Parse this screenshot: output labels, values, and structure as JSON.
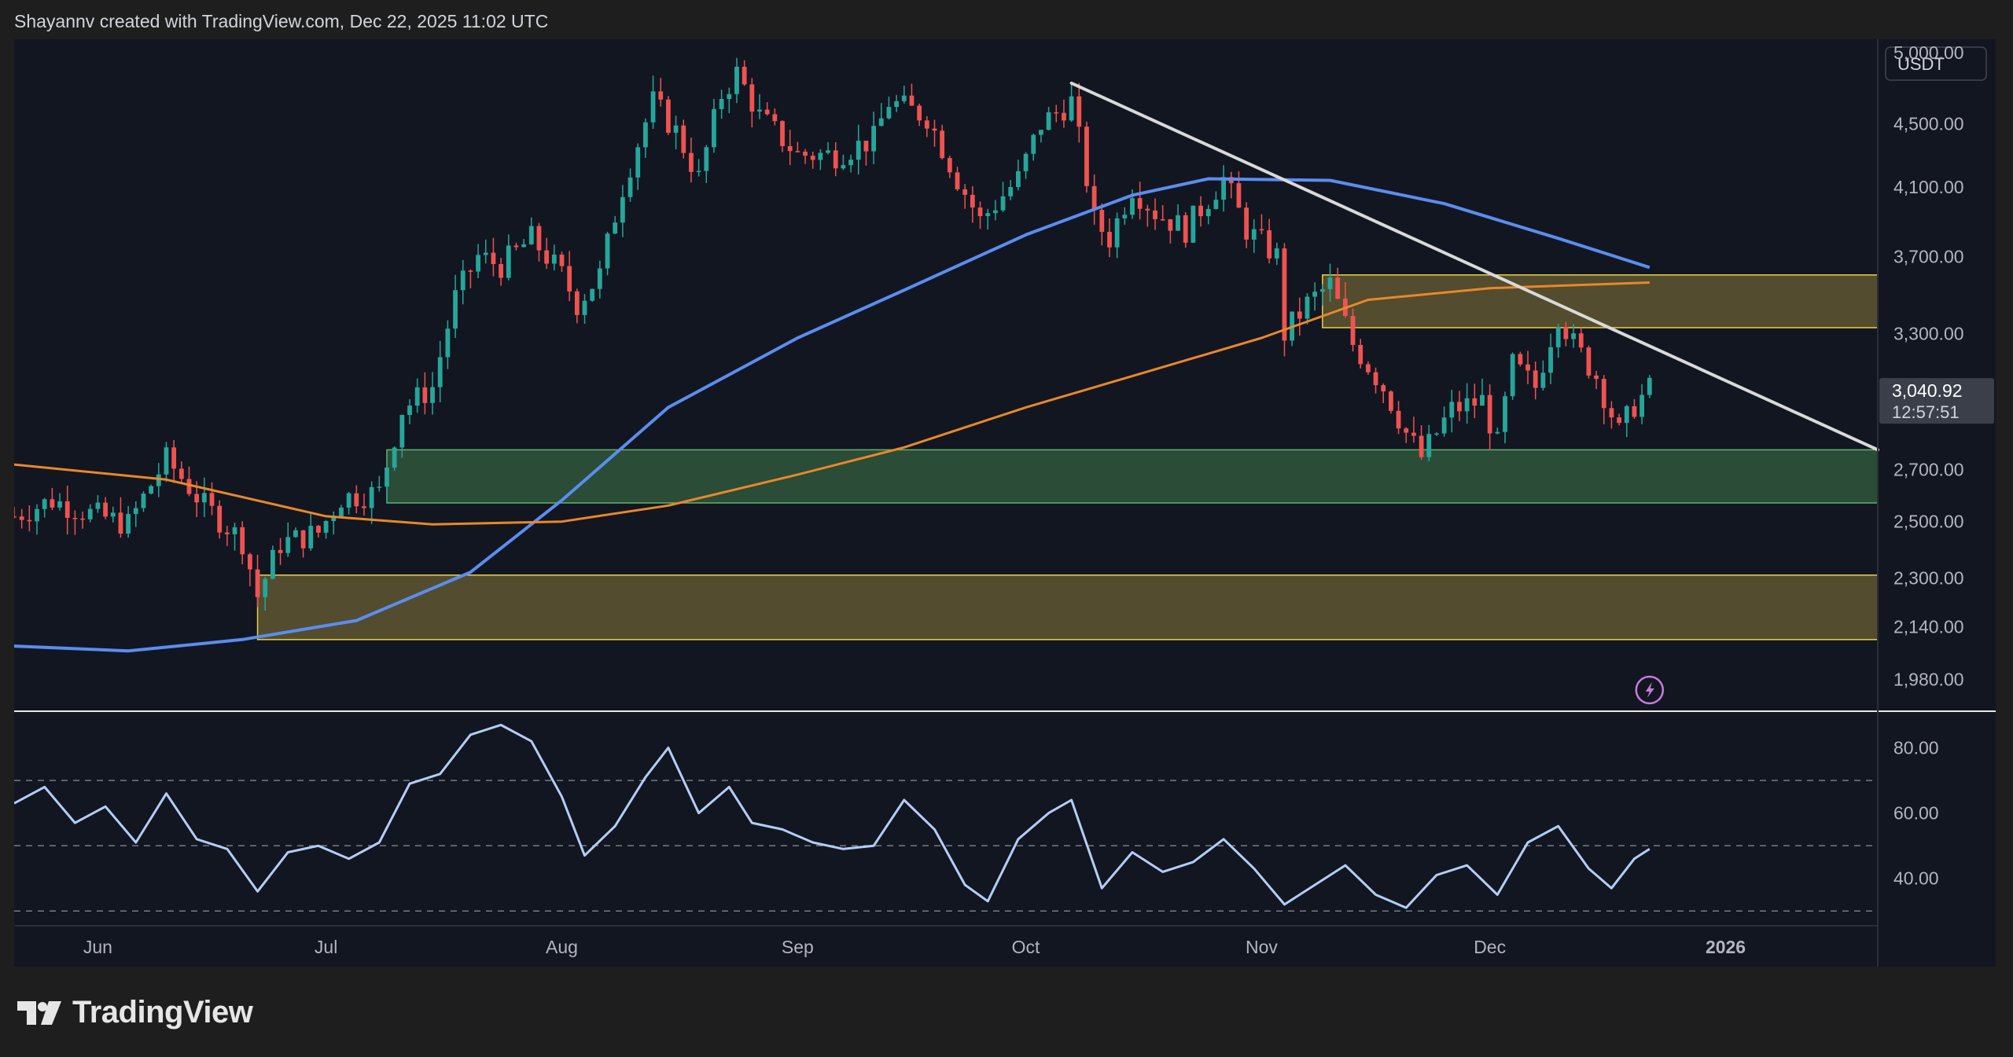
{
  "header": {
    "caption": "Shayannv created with TradingView.com, Dec 22, 2025 11:02 UTC"
  },
  "brand": {
    "name": "TradingView",
    "logo_icon": "tradingview-logo-icon"
  },
  "colors": {
    "background": "#121621",
    "up_candle": "#26a69a",
    "down_candle": "#ef5350",
    "ma_fast": "#e8882a",
    "ma_slow": "#5b8def",
    "trendline": "#d9d9d9",
    "rsi_line": "#b4cdf5",
    "zone_yellow_fill": "#5c5230",
    "zone_yellow_stroke": "#e6d24d",
    "zone_green_fill": "#2f5238",
    "zone_green_stroke": "#63b36f",
    "price_tag": "#3b3f4a"
  },
  "chart_data": [
    {
      "type": "candlestick",
      "title": "",
      "currency_label": "USDT",
      "scale": "log",
      "ylim": [
        1900,
        5100
      ],
      "x_range": [
        "2025-05-21",
        "2026-01-21"
      ],
      "yticks": [
        5000,
        4500,
        4100,
        3700,
        3300,
        3040.92,
        2700,
        2500,
        2300,
        2140,
        1980
      ],
      "ytick_labels": [
        "5,000.00",
        "4,500.00",
        "4,100.00",
        "3,700.00",
        "3,300.00",
        "3,040.92",
        "2,700.00",
        "2,500.00",
        "2,300.00",
        "2,140.00",
        "1,980.00"
      ],
      "xticks": [
        "2025-06-01",
        "2025-07-01",
        "2025-08-01",
        "2025-09-01",
        "2025-10-01",
        "2025-11-01",
        "2025-12-01",
        "2026-01-01"
      ],
      "xtick_labels": [
        "Jun",
        "Jul",
        "Aug",
        "Sep",
        "Oct",
        "Nov",
        "Dec",
        "2026"
      ],
      "current_price": {
        "value": 3040.92,
        "label": "3,040.92",
        "countdown": "12:57:51"
      },
      "close_path": [
        [
          "2025-05-21",
          2520
        ],
        [
          "2025-05-26",
          2580
        ],
        [
          "2025-05-31",
          2530
        ],
        [
          "2025-06-05",
          2490
        ],
        [
          "2025-06-10",
          2740
        ],
        [
          "2025-06-15",
          2560
        ],
        [
          "2025-06-20",
          2430
        ],
        [
          "2025-06-22",
          2240
        ],
        [
          "2025-06-25",
          2420
        ],
        [
          "2025-06-30",
          2460
        ],
        [
          "2025-07-03",
          2590
        ],
        [
          "2025-07-08",
          2610
        ],
        [
          "2025-07-11",
          2950
        ],
        [
          "2025-07-15",
          3050
        ],
        [
          "2025-07-18",
          3480
        ],
        [
          "2025-07-21",
          3700
        ],
        [
          "2025-07-24",
          3650
        ],
        [
          "2025-07-28",
          3800
        ],
        [
          "2025-08-01",
          3600
        ],
        [
          "2025-08-03",
          3450
        ],
        [
          "2025-08-06",
          3600
        ],
        [
          "2025-08-09",
          4100
        ],
        [
          "2025-08-13",
          4650
        ],
        [
          "2025-08-16",
          4450
        ],
        [
          "2025-08-19",
          4150
        ],
        [
          "2025-08-22",
          4700
        ],
        [
          "2025-08-24",
          4850
        ],
        [
          "2025-08-27",
          4550
        ],
        [
          "2025-09-01",
          4300
        ],
        [
          "2025-09-06",
          4300
        ],
        [
          "2025-09-11",
          4400
        ],
        [
          "2025-09-13",
          4650
        ],
        [
          "2025-09-18",
          4550
        ],
        [
          "2025-09-22",
          4150
        ],
        [
          "2025-09-25",
          3900
        ],
        [
          "2025-09-30",
          4150
        ],
        [
          "2025-10-03",
          4500
        ],
        [
          "2025-10-07",
          4650
        ],
        [
          "2025-10-10",
          3900
        ],
        [
          "2025-10-12",
          3800
        ],
        [
          "2025-10-15",
          4100
        ],
        [
          "2025-10-18",
          3950
        ],
        [
          "2025-10-22",
          3850
        ],
        [
          "2025-10-27",
          4150
        ],
        [
          "2025-10-30",
          3850
        ],
        [
          "2025-11-03",
          3700
        ],
        [
          "2025-11-04",
          3300
        ],
        [
          "2025-11-07",
          3450
        ],
        [
          "2025-11-10",
          3550
        ],
        [
          "2025-11-13",
          3250
        ],
        [
          "2025-11-17",
          3050
        ],
        [
          "2025-11-20",
          2850
        ],
        [
          "2025-11-22",
          2750
        ],
        [
          "2025-11-26",
          2950
        ],
        [
          "2025-11-30",
          2990
        ],
        [
          "2025-12-02",
          2800
        ],
        [
          "2025-12-04",
          3150
        ],
        [
          "2025-12-07",
          3050
        ],
        [
          "2025-12-10",
          3400
        ],
        [
          "2025-12-12",
          3250
        ],
        [
          "2025-12-15",
          3100
        ],
        [
          "2025-12-18",
          2850
        ],
        [
          "2025-12-20",
          2970
        ],
        [
          "2025-12-22",
          3040.92
        ]
      ],
      "ma_fast": {
        "name": "",
        "points": [
          [
            "2025-05-21",
            2720
          ],
          [
            "2025-06-10",
            2660
          ],
          [
            "2025-07-01",
            2520
          ],
          [
            "2025-07-15",
            2490
          ],
          [
            "2025-08-01",
            2500
          ],
          [
            "2025-08-15",
            2560
          ],
          [
            "2025-09-01",
            2680
          ],
          [
            "2025-09-15",
            2790
          ],
          [
            "2025-10-01",
            2960
          ],
          [
            "2025-10-15",
            3100
          ],
          [
            "2025-11-01",
            3280
          ],
          [
            "2025-11-15",
            3470
          ],
          [
            "2025-12-01",
            3530
          ],
          [
            "2025-12-22",
            3560
          ]
        ]
      },
      "ma_slow": {
        "name": "",
        "points": [
          [
            "2025-05-21",
            2080
          ],
          [
            "2025-06-05",
            2065
          ],
          [
            "2025-06-20",
            2100
          ],
          [
            "2025-07-05",
            2160
          ],
          [
            "2025-07-20",
            2320
          ],
          [
            "2025-08-01",
            2580
          ],
          [
            "2025-08-15",
            2960
          ],
          [
            "2025-09-01",
            3280
          ],
          [
            "2025-09-15",
            3520
          ],
          [
            "2025-10-01",
            3820
          ],
          [
            "2025-10-15",
            4050
          ],
          [
            "2025-10-25",
            4150
          ],
          [
            "2025-11-10",
            4140
          ],
          [
            "2025-11-25",
            4000
          ],
          [
            "2025-12-10",
            3800
          ],
          [
            "2025-12-22",
            3640
          ]
        ]
      },
      "trendline": {
        "start": [
          "2025-10-07",
          4780
        ],
        "end": [
          "2026-01-21",
          2780
        ]
      },
      "zones": [
        {
          "color": "yellow",
          "from": "2025-11-09",
          "to": "2026-01-21",
          "low": 3330,
          "high": 3600
        },
        {
          "color": "green",
          "from": "2025-07-09",
          "to": "2026-01-21",
          "low": 2570,
          "high": 2780
        },
        {
          "color": "yellow",
          "from": "2025-06-22",
          "to": "2026-01-21",
          "low": 2100,
          "high": 2310
        }
      ],
      "marker_icon": "lightning-icon"
    },
    {
      "type": "line",
      "title": "",
      "ylim": [
        25,
        90
      ],
      "yticks": [
        80,
        60,
        40
      ],
      "ytick_labels": [
        "80.00",
        "60.00",
        "40.00"
      ],
      "bands": [
        70,
        50,
        30
      ],
      "series": [
        {
          "name": "",
          "points": [
            [
              "2025-05-21",
              63
            ],
            [
              "2025-05-25",
              68
            ],
            [
              "2025-05-29",
              57
            ],
            [
              "2025-06-02",
              62
            ],
            [
              "2025-06-06",
              51
            ],
            [
              "2025-06-10",
              66
            ],
            [
              "2025-06-14",
              52
            ],
            [
              "2025-06-18",
              49
            ],
            [
              "2025-06-22",
              36
            ],
            [
              "2025-06-26",
              48
            ],
            [
              "2025-06-30",
              50
            ],
            [
              "2025-07-04",
              46
            ],
            [
              "2025-07-08",
              51
            ],
            [
              "2025-07-12",
              69
            ],
            [
              "2025-07-16",
              72
            ],
            [
              "2025-07-20",
              84
            ],
            [
              "2025-07-24",
              87
            ],
            [
              "2025-07-28",
              82
            ],
            [
              "2025-08-01",
              65
            ],
            [
              "2025-08-04",
              47
            ],
            [
              "2025-08-08",
              56
            ],
            [
              "2025-08-12",
              71
            ],
            [
              "2025-08-15",
              80
            ],
            [
              "2025-08-19",
              60
            ],
            [
              "2025-08-23",
              68
            ],
            [
              "2025-08-26",
              57
            ],
            [
              "2025-08-30",
              55
            ],
            [
              "2025-09-03",
              51
            ],
            [
              "2025-09-07",
              49
            ],
            [
              "2025-09-11",
              50
            ],
            [
              "2025-09-15",
              64
            ],
            [
              "2025-09-19",
              55
            ],
            [
              "2025-09-23",
              38
            ],
            [
              "2025-09-26",
              33
            ],
            [
              "2025-09-30",
              52
            ],
            [
              "2025-10-04",
              60
            ],
            [
              "2025-10-07",
              64
            ],
            [
              "2025-10-11",
              37
            ],
            [
              "2025-10-15",
              48
            ],
            [
              "2025-10-19",
              42
            ],
            [
              "2025-10-23",
              45
            ],
            [
              "2025-10-27",
              52
            ],
            [
              "2025-10-31",
              43
            ],
            [
              "2025-11-04",
              32
            ],
            [
              "2025-11-08",
              38
            ],
            [
              "2025-11-12",
              44
            ],
            [
              "2025-11-16",
              35
            ],
            [
              "2025-11-20",
              31
            ],
            [
              "2025-11-24",
              41
            ],
            [
              "2025-11-28",
              44
            ],
            [
              "2025-12-02",
              35
            ],
            [
              "2025-12-06",
              51
            ],
            [
              "2025-12-10",
              56
            ],
            [
              "2025-12-14",
              43
            ],
            [
              "2025-12-17",
              37
            ],
            [
              "2025-12-20",
              46
            ],
            [
              "2025-12-22",
              49
            ]
          ]
        }
      ]
    }
  ]
}
